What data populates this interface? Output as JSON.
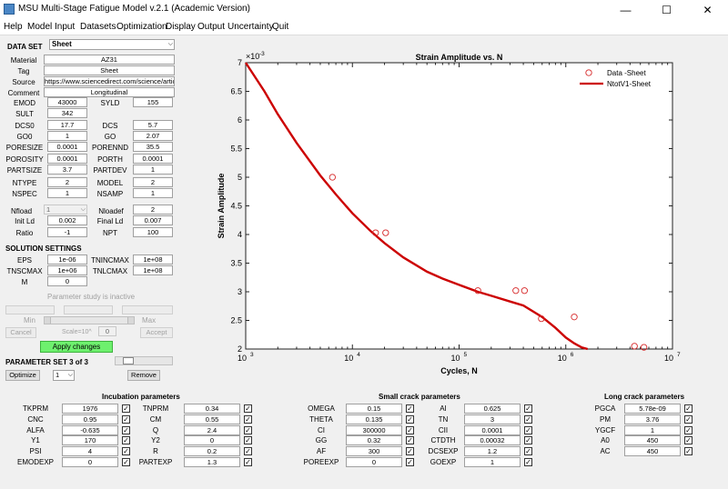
{
  "window": {
    "title": "MSU Multi-Stage Fatigue Model v.2.1 (Academic Version)",
    "min": "—",
    "max": "☐",
    "close": "✕"
  },
  "menu": [
    "Help",
    "Model",
    "Input",
    "Datasets",
    "Optimization",
    "Display",
    "Output",
    "Uncertainty",
    "Quit"
  ],
  "dataset": {
    "label": "DATA SET",
    "value": "Sheet",
    "info": [
      {
        "label": "Material",
        "value": "AZ31"
      },
      {
        "label": "Tag",
        "value": "Sheet"
      },
      {
        "label": "Source",
        "value": "https://www.sciencedirect.com/science/article/"
      },
      {
        "label": "Comment",
        "value": "Longitudinal"
      }
    ],
    "pairs": [
      [
        {
          "label": "EMOD",
          "value": "43000"
        },
        {
          "label": "SYLD",
          "value": "155"
        }
      ],
      [
        {
          "label": "SULT",
          "value": "342"
        },
        null
      ],
      [
        {
          "label": "DCS0",
          "value": "17.7"
        },
        {
          "label": "DCS",
          "value": "5.7"
        }
      ],
      [
        {
          "label": "GO0",
          "value": "1"
        },
        {
          "label": "GO",
          "value": "2.07"
        }
      ],
      [
        {
          "label": "PORESIZE",
          "value": "0.0001"
        },
        {
          "label": "PORENND",
          "value": "35.5"
        }
      ],
      [
        {
          "label": "POROSITY",
          "value": "0.0001"
        },
        {
          "label": "PORTH",
          "value": "0.0001"
        }
      ],
      [
        {
          "label": "PARTSIZE",
          "value": "3.7"
        },
        {
          "label": "PARTDEV",
          "value": "1"
        }
      ]
    ],
    "pairs2": [
      [
        {
          "label": "NTYPE",
          "value": "2"
        },
        {
          "label": "MODEL",
          "value": "2"
        }
      ],
      [
        {
          "label": "NSPEC",
          "value": "1"
        },
        {
          "label": "NSAMP",
          "value": "1"
        }
      ]
    ],
    "nfload": {
      "label": "Nfload",
      "value": "1"
    },
    "nloadef": {
      "label": "Nloadef",
      "value": "2"
    },
    "pairs3": [
      [
        {
          "label": "Init Ld",
          "value": "0.002"
        },
        {
          "label": "Final Ld",
          "value": "0.007"
        }
      ],
      [
        {
          "label": "Ratio",
          "value": "-1"
        },
        {
          "label": "NPT",
          "value": "100"
        }
      ]
    ]
  },
  "solution": {
    "label": "SOLUTION SETTINGS",
    "rows": [
      [
        {
          "label": "EPS",
          "value": "1e-06"
        },
        {
          "label": "TNINCMAX",
          "value": "1e+08"
        }
      ],
      [
        {
          "label": "TNSCMAX",
          "value": "1e+06"
        },
        {
          "label": "TNLCMAX",
          "value": "1e+08"
        }
      ],
      [
        {
          "label": "M",
          "value": "0"
        },
        null
      ]
    ]
  },
  "param_study": {
    "status": "Parameter study is inactive",
    "min": "Min",
    "max": "Max",
    "scale_label": "Scale=10^",
    "scale_value": "0",
    "cancel": "Cancel",
    "accept": "Accept",
    "apply": "Apply changes"
  },
  "param_set": {
    "label": "PARAMETER SET 3 of 3",
    "optimize": "Optimize",
    "select": "1",
    "remove": "Remove"
  },
  "chart_data": {
    "type": "scatter",
    "title": "Strain Amplitude vs. N",
    "xlabel": "Cycles, N",
    "ylabel": "Strain Amplitude",
    "y_multiplier": "×10^-3",
    "xscale": "log",
    "xlim": [
      1000,
      10000000
    ],
    "ylim": [
      2,
      7
    ],
    "xticks": [
      "10^3",
      "10^4",
      "10^5",
      "10^6",
      "10^7"
    ],
    "yticks": [
      "2",
      "2.5",
      "3",
      "3.5",
      "4",
      "4.5",
      "5",
      "5.5",
      "6",
      "6.5",
      "7"
    ],
    "legend_position": "top-right",
    "series": [
      {
        "name": "Data -Sheet",
        "kind": "markers",
        "color": "#d62728",
        "x": [
          6500,
          16500,
          20500,
          150000,
          340000,
          410000,
          590000,
          1200000,
          4400000,
          5400000
        ],
        "y": [
          5.0,
          4.03,
          4.03,
          3.02,
          3.02,
          3.02,
          2.53,
          2.56,
          2.05,
          2.03
        ]
      },
      {
        "name": "NtotV1-Sheet",
        "kind": "line",
        "color": "#cc0000",
        "x": [
          1000,
          1500,
          2000,
          3000,
          5000,
          7000,
          10000,
          15000,
          20000,
          30000,
          50000,
          70000,
          100000,
          150000,
          200000,
          300000,
          400000,
          600000,
          800000,
          1000000,
          1200000,
          1400000,
          1600000
        ],
        "y": [
          7.0,
          6.5,
          6.1,
          5.6,
          5.03,
          4.7,
          4.37,
          4.05,
          3.85,
          3.6,
          3.35,
          3.23,
          3.12,
          3.0,
          2.93,
          2.83,
          2.76,
          2.56,
          2.37,
          2.2,
          2.1,
          2.03,
          2.0
        ]
      }
    ]
  },
  "incubation": {
    "title": "Incubation parameters",
    "rows": [
      [
        {
          "label": "TKPRM",
          "value": "1976"
        },
        {
          "label": "TNPRM",
          "value": "0.34"
        }
      ],
      [
        {
          "label": "CNC",
          "value": "0.95"
        },
        {
          "label": "CM",
          "value": "0.55"
        }
      ],
      [
        {
          "label": "ALFA",
          "value": "-0.635"
        },
        {
          "label": "Q",
          "value": "2.4"
        }
      ],
      [
        {
          "label": "Y1",
          "value": "170"
        },
        {
          "label": "Y2",
          "value": "0"
        }
      ],
      [
        {
          "label": "PSI",
          "value": "4"
        },
        {
          "label": "R",
          "value": "0.2"
        }
      ],
      [
        {
          "label": "EMODEXP",
          "value": "0"
        },
        {
          "label": "PARTEXP",
          "value": "1.3"
        }
      ]
    ]
  },
  "smallcrack": {
    "title": "Small crack parameters",
    "rows": [
      [
        {
          "label": "OMEGA",
          "value": "0.15"
        },
        {
          "label": "AI",
          "value": "0.625"
        }
      ],
      [
        {
          "label": "THETA",
          "value": "0.135"
        },
        {
          "label": "TN",
          "value": "3"
        }
      ],
      [
        {
          "label": "CI",
          "value": "300000"
        },
        {
          "label": "CII",
          "value": "0.0001"
        }
      ],
      [
        {
          "label": "GG",
          "value": "0.32"
        },
        {
          "label": "CTDTH",
          "value": "0.00032"
        }
      ],
      [
        {
          "label": "AF",
          "value": "300"
        },
        {
          "label": "DCSEXP",
          "value": "1.2"
        }
      ],
      [
        {
          "label": "POREEXP",
          "value": "0"
        },
        {
          "label": "GOEXP",
          "value": "1"
        }
      ]
    ]
  },
  "longcrack": {
    "title": "Long crack parameters",
    "rows": [
      {
        "label": "PGCA",
        "value": "5.78e-09"
      },
      {
        "label": "PM",
        "value": "3.76"
      },
      {
        "label": "YGCF",
        "value": "1"
      },
      {
        "label": "A0",
        "value": "450"
      },
      {
        "label": "AC",
        "value": "450"
      }
    ]
  },
  "checkmark": "✓"
}
